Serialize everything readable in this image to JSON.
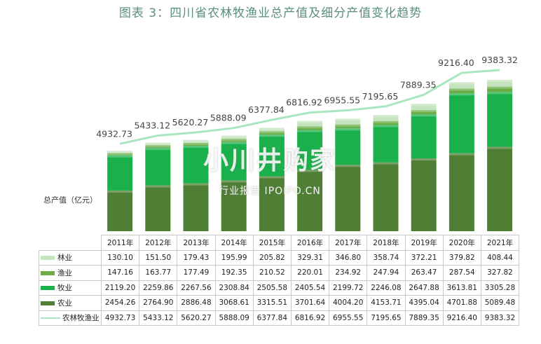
{
  "title": "图表 3：四川省农林牧渔业总产值及细分产值变化趋势",
  "watermark": {
    "main": "小川井购家",
    "sub": "行业报告 IPOIPO.CN"
  },
  "colors": {
    "forestry": "#c5e3be",
    "fishery": "#6aad47",
    "livestock": "#1ab04b",
    "agriculture": "#4f7f35",
    "total_line": "#a9e6c0"
  },
  "chart_data": {
    "type": "bar",
    "stacked": true,
    "ylabel": "总产值（亿元）",
    "categories": [
      "2011年",
      "2012年",
      "2013年",
      "2014年",
      "2015年",
      "2016年",
      "2017年",
      "2018年",
      "2019年",
      "2020年",
      "2021年"
    ],
    "series": [
      {
        "name": "林业",
        "key": "forestry",
        "values": [
          130.1,
          151.5,
          179.43,
          195.99,
          205.82,
          329.31,
          346.8,
          358.74,
          372.21,
          379.82,
          408.44
        ]
      },
      {
        "name": "渔业",
        "key": "fishery",
        "values": [
          147.16,
          163.77,
          177.49,
          192.35,
          210.52,
          220.01,
          234.92,
          247.94,
          263.47,
          287.54,
          327.82
        ]
      },
      {
        "name": "牧业",
        "key": "livestock",
        "values": [
          2119.2,
          2259.86,
          2267.56,
          2308.84,
          2505.58,
          2405.54,
          2199.72,
          2246.08,
          2647.88,
          3613.81,
          3305.28
        ]
      },
      {
        "name": "农业",
        "key": "agriculture",
        "values": [
          2454.26,
          2764.9,
          2886.48,
          3068.61,
          3315.51,
          3701.64,
          4004.2,
          4153.71,
          4395.04,
          4701.88,
          5089.48
        ]
      }
    ],
    "line": {
      "name": "农林牧渔业",
      "key": "total_line",
      "values": [
        4932.73,
        5433.12,
        5620.27,
        5888.09,
        6377.84,
        6816.92,
        6955.55,
        7195.65,
        7889.35,
        9216.4,
        9383.32
      ]
    },
    "table_labels": {
      "forestry": [
        "130.10",
        "151.50",
        "179.43",
        "195.99",
        "205.82",
        "329.31",
        "346.80",
        "358.74",
        "372.21",
        "379.82",
        "408.44"
      ],
      "fishery": [
        "147.16",
        "163.77",
        "177.49",
        "192.35",
        "210.52",
        "220.01",
        "234.92",
        "247.94",
        "263.47",
        "287.54",
        "327.82"
      ],
      "livestock": [
        "2119.20",
        "2259.86",
        "2267.56",
        "2308.84",
        "2505.58",
        "2405.54",
        "2199.72",
        "2246.08",
        "2647.88",
        "3613.81",
        "3305.28"
      ],
      "agriculture": [
        "2454.26",
        "2764.90",
        "2886.48",
        "3068.61",
        "3315.51",
        "3701.64",
        "4004.20",
        "4153.71",
        "4395.04",
        "4701.88",
        "5089.48"
      ],
      "total_line": [
        "4932.73",
        "5433.12",
        "5620.27",
        "5888.09",
        "6377.84",
        "6816.92",
        "6955.55",
        "7195.65",
        "7889.35",
        "9216.40",
        "9383.32"
      ]
    }
  }
}
